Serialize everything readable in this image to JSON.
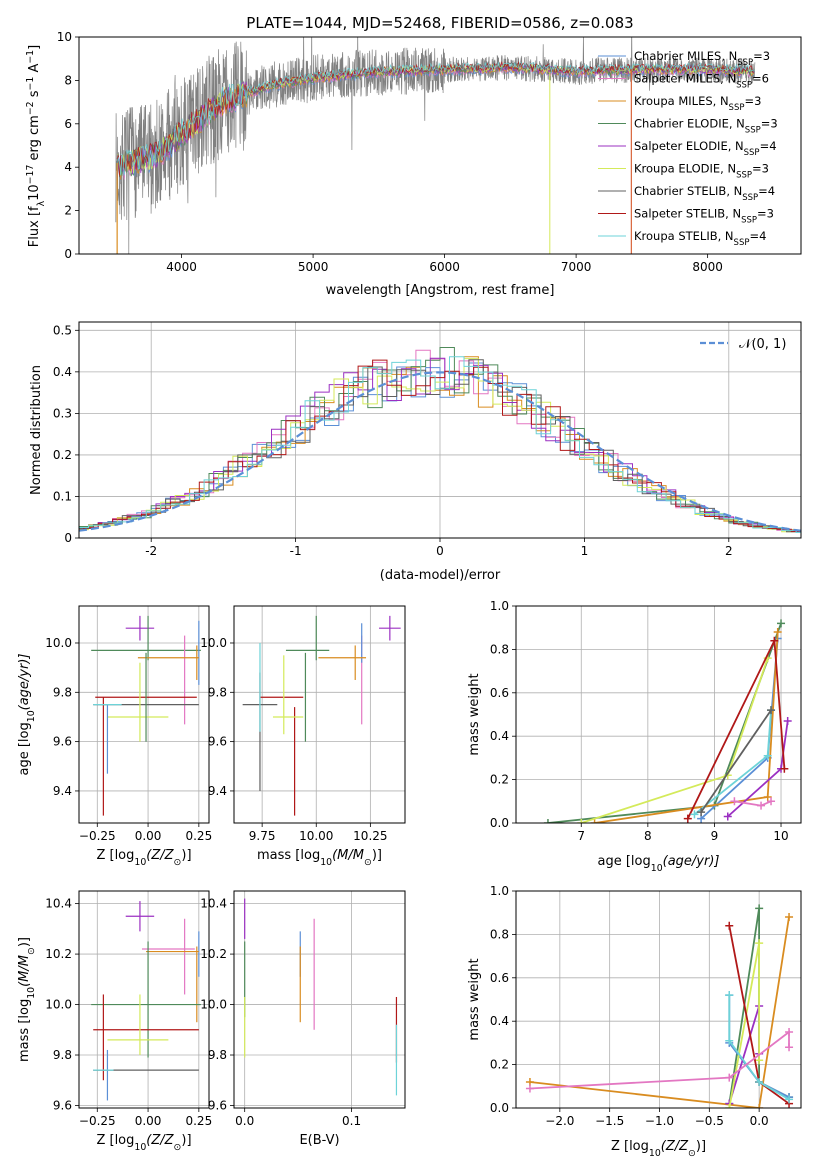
{
  "chart_data": [
    {
      "type": "line",
      "title": "PLATE=1044, MJD=52468, FIBERID=0586, z=0.083",
      "xlabel": "wavelength [Angstrom, rest frame]",
      "ylabel": "Flux [f_λ10^-17 erg cm^-2 s^-1 A^-1]",
      "ylabel_parts": {
        "a": "Flux [f",
        "b": "λ",
        "c": "10",
        "d": "−17",
        "e": " erg cm",
        "f": "−2",
        "g": " s",
        "h": "−1",
        "i": " A",
        "j": "−1",
        "k": "]"
      },
      "xlim": [
        3220,
        8710
      ],
      "ylim": [
        0,
        10
      ],
      "xticks": [
        4000,
        5000,
        6000,
        7000,
        8000
      ],
      "yticks": [
        0,
        2,
        4,
        6,
        8,
        10
      ],
      "data_range": [
        3500,
        8360
      ],
      "continuum": [
        [
          3500,
          4.0
        ],
        [
          3800,
          4.5
        ],
        [
          4000,
          5.5
        ],
        [
          4300,
          7.0
        ],
        [
          4700,
          7.8
        ],
        [
          5000,
          8.1
        ],
        [
          5500,
          8.4
        ],
        [
          6000,
          8.5
        ],
        [
          6500,
          8.6
        ],
        [
          7000,
          8.4
        ],
        [
          7500,
          8.5
        ],
        [
          8000,
          8.5
        ],
        [
          8360,
          8.4
        ]
      ],
      "series": [
        {
          "name": "Chabrier MILES",
          "n": "3",
          "color": "#5b8fd6"
        },
        {
          "name": "Salpeter MILES",
          "n": "6",
          "color": "#e377c2"
        },
        {
          "name": "Kroupa MILES",
          "n": "3",
          "color": "#d98c20"
        },
        {
          "name": "Chabrier ELODIE",
          "n": "3",
          "color": "#4f8a5a"
        },
        {
          "name": "Salpeter ELODIE",
          "n": "4",
          "color": "#9b30c2"
        },
        {
          "name": "Kroupa ELODIE",
          "n": "3",
          "color": "#d4ea5a"
        },
        {
          "name": "Chabrier STELIB",
          "n": "4",
          "color": "#606060"
        },
        {
          "name": "Salpeter STELIB",
          "n": "3",
          "color": "#b01818"
        },
        {
          "name": "Kroupa STELIB",
          "n": "4",
          "color": "#6dd3d8"
        }
      ],
      "legend_sub": "SSP",
      "legend_location": "right"
    },
    {
      "type": "histogram",
      "xlabel": "(data-model)/error",
      "ylabel": "Normed distribution",
      "xlim": [
        -2.5,
        2.5
      ],
      "ylim": [
        0,
        0.52
      ],
      "xticks": [
        -2,
        -1,
        0,
        1,
        2
      ],
      "yticks": [
        0.0,
        0.1,
        0.2,
        0.3,
        0.4,
        0.5
      ],
      "reference": {
        "name": "𝒩(0, 1)",
        "color": "#5b8fd6"
      },
      "grid": true
    },
    {
      "type": "scatter",
      "xlabel": "Z [log10(Z/Z⊙)]",
      "xlabel_parts": {
        "a": "Z [log",
        "b": "10",
        "c": "(Z/Z",
        "d": "⊙",
        "e": ")]"
      },
      "ylabel": "age [log10(age/yr)]",
      "ylabel_parts": {
        "a": "age  [log",
        "b": "10",
        "c": "(age/yr)]"
      },
      "xlim": [
        -0.34,
        0.3
      ],
      "ylim": [
        9.27,
        10.15
      ],
      "xticks": [
        -0.25,
        0.0,
        0.25
      ],
      "xticklabels": [
        "−0.25",
        "0.00",
        "0.25"
      ],
      "yticks": [
        9.4,
        9.6,
        9.8,
        10.0
      ],
      "yticklabels": [
        "9.4",
        "9.6",
        "9.8",
        "10.0"
      ],
      "points": [
        {
          "x": -0.04,
          "xe": 0.07,
          "y": 10.06,
          "ye": 0.05,
          "color": "#9b30c2"
        },
        {
          "x": 0.0,
          "xe": 0.0,
          "y": 10.02,
          "ye": 0.09,
          "color": "#4f8a5a"
        },
        {
          "x": -0.01,
          "xe": 0.27,
          "y": 9.97,
          "ye": 0.0,
          "color": "#4f8a5a"
        },
        {
          "x": 0.18,
          "xe": 0.0,
          "y": 9.85,
          "ye": 0.18,
          "color": "#e377c2"
        },
        {
          "x": 0.25,
          "xe": 0.0,
          "y": 9.96,
          "ye": 0.13,
          "color": "#5b8fd6"
        },
        {
          "x": 0.1,
          "xe": 0.15,
          "y": 9.94,
          "ye": 0.0,
          "color": "#d98c20"
        },
        {
          "x": 0.24,
          "xe": 0.0,
          "y": 9.92,
          "ye": 0.07,
          "color": "#d98c20"
        },
        {
          "x": -0.01,
          "xe": 0.25,
          "y": 9.78,
          "ye": 0.0,
          "color": "#b01818"
        },
        {
          "x": -0.22,
          "xe": 0.0,
          "y": 9.54,
          "ye": 0.24,
          "color": "#b01818"
        },
        {
          "x": -0.01,
          "xe": 0.26,
          "y": 9.75,
          "ye": 0.0,
          "color": "#606060"
        },
        {
          "x": -0.05,
          "xe": 0.15,
          "y": 9.7,
          "ye": 0.0,
          "color": "#d4ea5a"
        },
        {
          "x": -0.04,
          "xe": 0.0,
          "y": 9.76,
          "ye": 0.16,
          "color": "#d4ea5a"
        },
        {
          "x": -0.01,
          "xe": 0.0,
          "y": 9.78,
          "ye": 0.18,
          "color": "#4f8a5a"
        },
        {
          "x": -0.2,
          "xe": 0.0,
          "y": 9.61,
          "ye": 0.14,
          "color": "#5b8fd6"
        },
        {
          "x": -0.2,
          "xe": 0.07,
          "y": 9.75,
          "ye": 0.0,
          "color": "#6dd3d8"
        }
      ]
    },
    {
      "type": "scatter",
      "xlabel": "mass [log10(M/M⊙)]",
      "xlabel_parts": {
        "a": "mass [log",
        "b": "10",
        "c": "(M/M",
        "d": "⊙",
        "e": ")]"
      },
      "xlim": [
        9.62,
        10.41
      ],
      "ylim": [
        9.27,
        10.15
      ],
      "xticks": [
        9.75,
        10.0,
        10.25
      ],
      "xticklabels": [
        "9.75",
        "10.00",
        "10.25"
      ],
      "yticks": [
        9.4,
        9.6,
        9.8,
        10.0
      ],
      "yticklabels": [
        "9.4",
        "9.6",
        "9.8",
        "10.0"
      ],
      "points": [
        {
          "x": 10.34,
          "xe": 0.05,
          "y": 10.06,
          "ye": 0.05,
          "color": "#9b30c2"
        },
        {
          "x": 10.0,
          "xe": 0.0,
          "y": 10.02,
          "ye": 0.09,
          "color": "#4f8a5a"
        },
        {
          "x": 9.96,
          "xe": 0.1,
          "y": 9.97,
          "ye": 0.0,
          "color": "#4f8a5a"
        },
        {
          "x": 10.21,
          "xe": 0.0,
          "y": 9.85,
          "ye": 0.18,
          "color": "#e377c2"
        },
        {
          "x": 10.21,
          "xe": 0.0,
          "y": 10.0,
          "ye": 0.08,
          "color": "#5b8fd6"
        },
        {
          "x": 10.12,
          "xe": 0.11,
          "y": 9.94,
          "ye": 0.0,
          "color": "#d98c20"
        },
        {
          "x": 10.18,
          "xe": 0.0,
          "y": 9.92,
          "ye": 0.07,
          "color": "#d98c20"
        },
        {
          "x": 9.84,
          "xe": 0.1,
          "y": 9.78,
          "ye": 0.0,
          "color": "#b01818"
        },
        {
          "x": 9.9,
          "xe": 0.0,
          "y": 9.52,
          "ye": 0.22,
          "color": "#b01818"
        },
        {
          "x": 9.74,
          "xe": 0.08,
          "y": 9.75,
          "ye": 0.0,
          "color": "#606060"
        },
        {
          "x": 9.74,
          "xe": 0.0,
          "y": 9.64,
          "ye": 0.24,
          "color": "#606060"
        },
        {
          "x": 9.95,
          "xe": 0.0,
          "y": 9.78,
          "ye": 0.18,
          "color": "#4f8a5a"
        },
        {
          "x": 9.87,
          "xe": 0.07,
          "y": 9.7,
          "ye": 0.0,
          "color": "#d4ea5a"
        },
        {
          "x": 9.85,
          "xe": 0.0,
          "y": 9.79,
          "ye": 0.16,
          "color": "#d4ea5a"
        },
        {
          "x": 9.74,
          "xe": 0.0,
          "y": 9.82,
          "ye": 0.18,
          "color": "#6dd3d8"
        }
      ]
    },
    {
      "type": "line",
      "xlabel": "age [log10(age/yr)]",
      "xlabel_parts": {
        "a": "age  [log",
        "b": "10",
        "c": "(age/yr)]"
      },
      "ylabel": "mass weight",
      "xlim": [
        6.02,
        10.3
      ],
      "ylim": [
        0,
        1
      ],
      "xticks": [
        7,
        8,
        9,
        10
      ],
      "xticklabels": [
        "7",
        "8",
        "9",
        "10"
      ],
      "yticks": [
        0,
        0.2,
        0.4,
        0.6,
        0.8,
        1.0
      ],
      "yticklabels": [
        "0.0",
        "0.2",
        "0.4",
        "0.6",
        "0.8",
        "1.0"
      ],
      "series": [
        {
          "color": "#4f8a5a",
          "points": [
            [
              6.5,
              0.0
            ],
            [
              9.0,
              0.08
            ],
            [
              10.0,
              0.92
            ]
          ]
        },
        {
          "color": "#5b8fd6",
          "points": [
            [
              8.8,
              0.02
            ],
            [
              9.8,
              0.3
            ],
            [
              9.95,
              0.85
            ]
          ]
        },
        {
          "color": "#d98c20",
          "points": [
            [
              7.2,
              0.0
            ],
            [
              9.8,
              0.12
            ],
            [
              9.95,
              0.88
            ]
          ]
        },
        {
          "color": "#9b30c2",
          "points": [
            [
              9.2,
              0.03
            ],
            [
              10.0,
              0.25
            ],
            [
              10.1,
              0.47
            ]
          ]
        },
        {
          "color": "#d4ea5a",
          "points": [
            [
              7.0,
              0.0
            ],
            [
              9.2,
              0.22
            ],
            [
              9.8,
              0.76
            ]
          ]
        },
        {
          "color": "#b01818",
          "points": [
            [
              8.6,
              0.02
            ],
            [
              9.9,
              0.84
            ],
            [
              10.05,
              0.25
            ]
          ]
        },
        {
          "color": "#6dd3d8",
          "points": [
            [
              8.7,
              0.04
            ],
            [
              9.8,
              0.31
            ],
            [
              9.85,
              0.52
            ]
          ]
        },
        {
          "color": "#606060",
          "points": [
            [
              8.8,
              0.05
            ],
            [
              9.85,
              0.52
            ]
          ]
        },
        {
          "color": "#e377c2",
          "points": [
            [
              9.3,
              0.1
            ],
            [
              9.7,
              0.08
            ],
            [
              9.85,
              0.1
            ]
          ]
        }
      ]
    },
    {
      "type": "scatter",
      "xlabel": "Z [log10(Z/Z⊙)]",
      "xlabel_parts": {
        "a": "Z [log",
        "b": "10",
        "c": "(Z/Z",
        "d": "⊙",
        "e": ")]"
      },
      "ylabel": "mass [log10(M/M⊙)]",
      "ylabel_parts": {
        "a": "mass [log",
        "b": "10",
        "c": "(M/M",
        "d": "⊙",
        "e": ")]"
      },
      "xlim": [
        -0.34,
        0.3
      ],
      "ylim": [
        9.59,
        10.45
      ],
      "xticks": [
        -0.25,
        0.0,
        0.25
      ],
      "xticklabels": [
        "−0.25",
        "0.00",
        "0.25"
      ],
      "yticks": [
        9.6,
        9.8,
        10.0,
        10.2,
        10.4
      ],
      "yticklabels": [
        "9.6",
        "9.8",
        "10.0",
        "10.2",
        "10.4"
      ],
      "points": [
        {
          "x": -0.04,
          "xe": 0.07,
          "y": 10.35,
          "ye": 0.06,
          "color": "#9b30c2"
        },
        {
          "x": 0.1,
          "xe": 0.13,
          "y": 10.22,
          "ye": 0.0,
          "color": "#e377c2"
        },
        {
          "x": 0.18,
          "xe": 0.0,
          "y": 10.19,
          "ye": 0.15,
          "color": "#e377c2"
        },
        {
          "x": 0.25,
          "xe": 0.0,
          "y": 10.2,
          "ye": 0.09,
          "color": "#5b8fd6"
        },
        {
          "x": 0.12,
          "xe": 0.13,
          "y": 10.21,
          "ye": 0.0,
          "color": "#d98c20"
        },
        {
          "x": 0.24,
          "xe": 0.0,
          "y": 10.08,
          "ye": 0.15,
          "color": "#d98c20"
        },
        {
          "x": -0.01,
          "xe": 0.27,
          "y": 10.0,
          "ye": 0.0,
          "color": "#4f8a5a"
        },
        {
          "x": 0.0,
          "xe": 0.0,
          "y": 10.02,
          "ye": 0.23,
          "color": "#4f8a5a"
        },
        {
          "x": -0.01,
          "xe": 0.26,
          "y": 9.9,
          "ye": 0.0,
          "color": "#b01818"
        },
        {
          "x": -0.22,
          "xe": 0.0,
          "y": 9.87,
          "ye": 0.17,
          "color": "#b01818"
        },
        {
          "x": -0.05,
          "xe": 0.15,
          "y": 9.86,
          "ye": 0.0,
          "color": "#d4ea5a"
        },
        {
          "x": -0.04,
          "xe": 0.0,
          "y": 9.92,
          "ye": 0.12,
          "color": "#d4ea5a"
        },
        {
          "x": -0.01,
          "xe": 0.26,
          "y": 9.74,
          "ye": 0.0,
          "color": "#606060"
        },
        {
          "x": -0.2,
          "xe": 0.0,
          "y": 9.72,
          "ye": 0.1,
          "color": "#5b8fd6"
        },
        {
          "x": -0.22,
          "xe": 0.05,
          "y": 9.74,
          "ye": 0.0,
          "color": "#6dd3d8"
        }
      ]
    },
    {
      "type": "scatter",
      "xlabel": "E(B-V)",
      "xlim": [
        -0.01,
        0.15
      ],
      "ylim": [
        9.59,
        10.45
      ],
      "xticks": [
        0.0,
        0.1
      ],
      "xticklabels": [
        "0.0",
        "0.1"
      ],
      "yticks": [
        9.6,
        9.8,
        10.0,
        10.2,
        10.4
      ],
      "yticklabels": [
        "9.6",
        "9.8",
        "10.0",
        "10.2",
        "10.4"
      ],
      "points": [
        {
          "x": 0.0,
          "xe": 0.0,
          "y": 10.34,
          "ye": 0.08,
          "color": "#9b30c2"
        },
        {
          "x": 0.0,
          "xe": 0.0,
          "y": 10.1,
          "ye": 0.15,
          "color": "#4f8a5a"
        },
        {
          "x": 0.0,
          "xe": 0.0,
          "y": 9.91,
          "ye": 0.12,
          "color": "#d4ea5a"
        },
        {
          "x": 0.052,
          "xe": 0.0,
          "y": 10.2,
          "ye": 0.09,
          "color": "#5b8fd6"
        },
        {
          "x": 0.052,
          "xe": 0.0,
          "y": 10.08,
          "ye": 0.15,
          "color": "#d98c20"
        },
        {
          "x": 0.065,
          "xe": 0.0,
          "y": 10.12,
          "ye": 0.22,
          "color": "#e377c2"
        },
        {
          "x": 0.142,
          "xe": 0.0,
          "y": 9.9,
          "ye": 0.13,
          "color": "#b01818"
        },
        {
          "x": 0.142,
          "xe": 0.0,
          "y": 9.78,
          "ye": 0.14,
          "color": "#6dd3d8"
        }
      ]
    },
    {
      "type": "line",
      "xlabel": "Z [log10(Z/Z⊙)]",
      "xlabel_parts": {
        "a": "Z [log",
        "b": "10",
        "c": "(Z/Z",
        "d": "⊙",
        "e": ")]"
      },
      "ylabel": "mass weight",
      "xlim": [
        -2.44,
        0.42
      ],
      "ylim": [
        0,
        1
      ],
      "xticks": [
        -2.0,
        -1.5,
        -1.0,
        -0.5,
        0.0
      ],
      "xticklabels": [
        "−2.0",
        "−1.5",
        "−1.0",
        "−0.5",
        "0.0"
      ],
      "yticks": [
        0,
        0.2,
        0.4,
        0.6,
        0.8,
        1.0
      ],
      "yticklabels": [
        "0.0",
        "0.2",
        "0.4",
        "0.6",
        "0.8",
        "1.0"
      ],
      "series": [
        {
          "color": "#4f8a5a",
          "points": [
            [
              -0.3,
              0.02
            ],
            [
              0.0,
              0.92
            ],
            [
              0.0,
              0.12
            ],
            [
              0.3,
              0.05
            ]
          ]
        },
        {
          "color": "#5b8fd6",
          "points": [
            [
              -0.3,
              0.52
            ],
            [
              -0.3,
              0.3
            ],
            [
              0.0,
              0.12
            ],
            [
              0.3,
              0.05
            ]
          ]
        },
        {
          "color": "#d98c20",
          "points": [
            [
              -2.3,
              0.12
            ],
            [
              0.0,
              0.0
            ],
            [
              0.3,
              0.88
            ]
          ]
        },
        {
          "color": "#9b30c2",
          "points": [
            [
              -0.3,
              0.02
            ],
            [
              0.0,
              0.47
            ],
            [
              0.0,
              0.25
            ]
          ]
        },
        {
          "color": "#d4ea5a",
          "points": [
            [
              -0.3,
              0.0
            ],
            [
              0.0,
              0.76
            ],
            [
              0.0,
              0.22
            ]
          ]
        },
        {
          "color": "#b01818",
          "points": [
            [
              -0.3,
              0.84
            ],
            [
              0.0,
              0.12
            ],
            [
              0.3,
              0.02
            ]
          ]
        },
        {
          "color": "#6dd3d8",
          "points": [
            [
              -0.3,
              0.52
            ],
            [
              -0.3,
              0.31
            ],
            [
              0.0,
              0.12
            ],
            [
              0.3,
              0.04
            ]
          ]
        },
        {
          "color": "#e377c2",
          "points": [
            [
              -2.3,
              0.09
            ],
            [
              -0.3,
              0.14
            ],
            [
              0.3,
              0.35
            ],
            [
              0.3,
              0.28
            ]
          ]
        }
      ]
    }
  ]
}
